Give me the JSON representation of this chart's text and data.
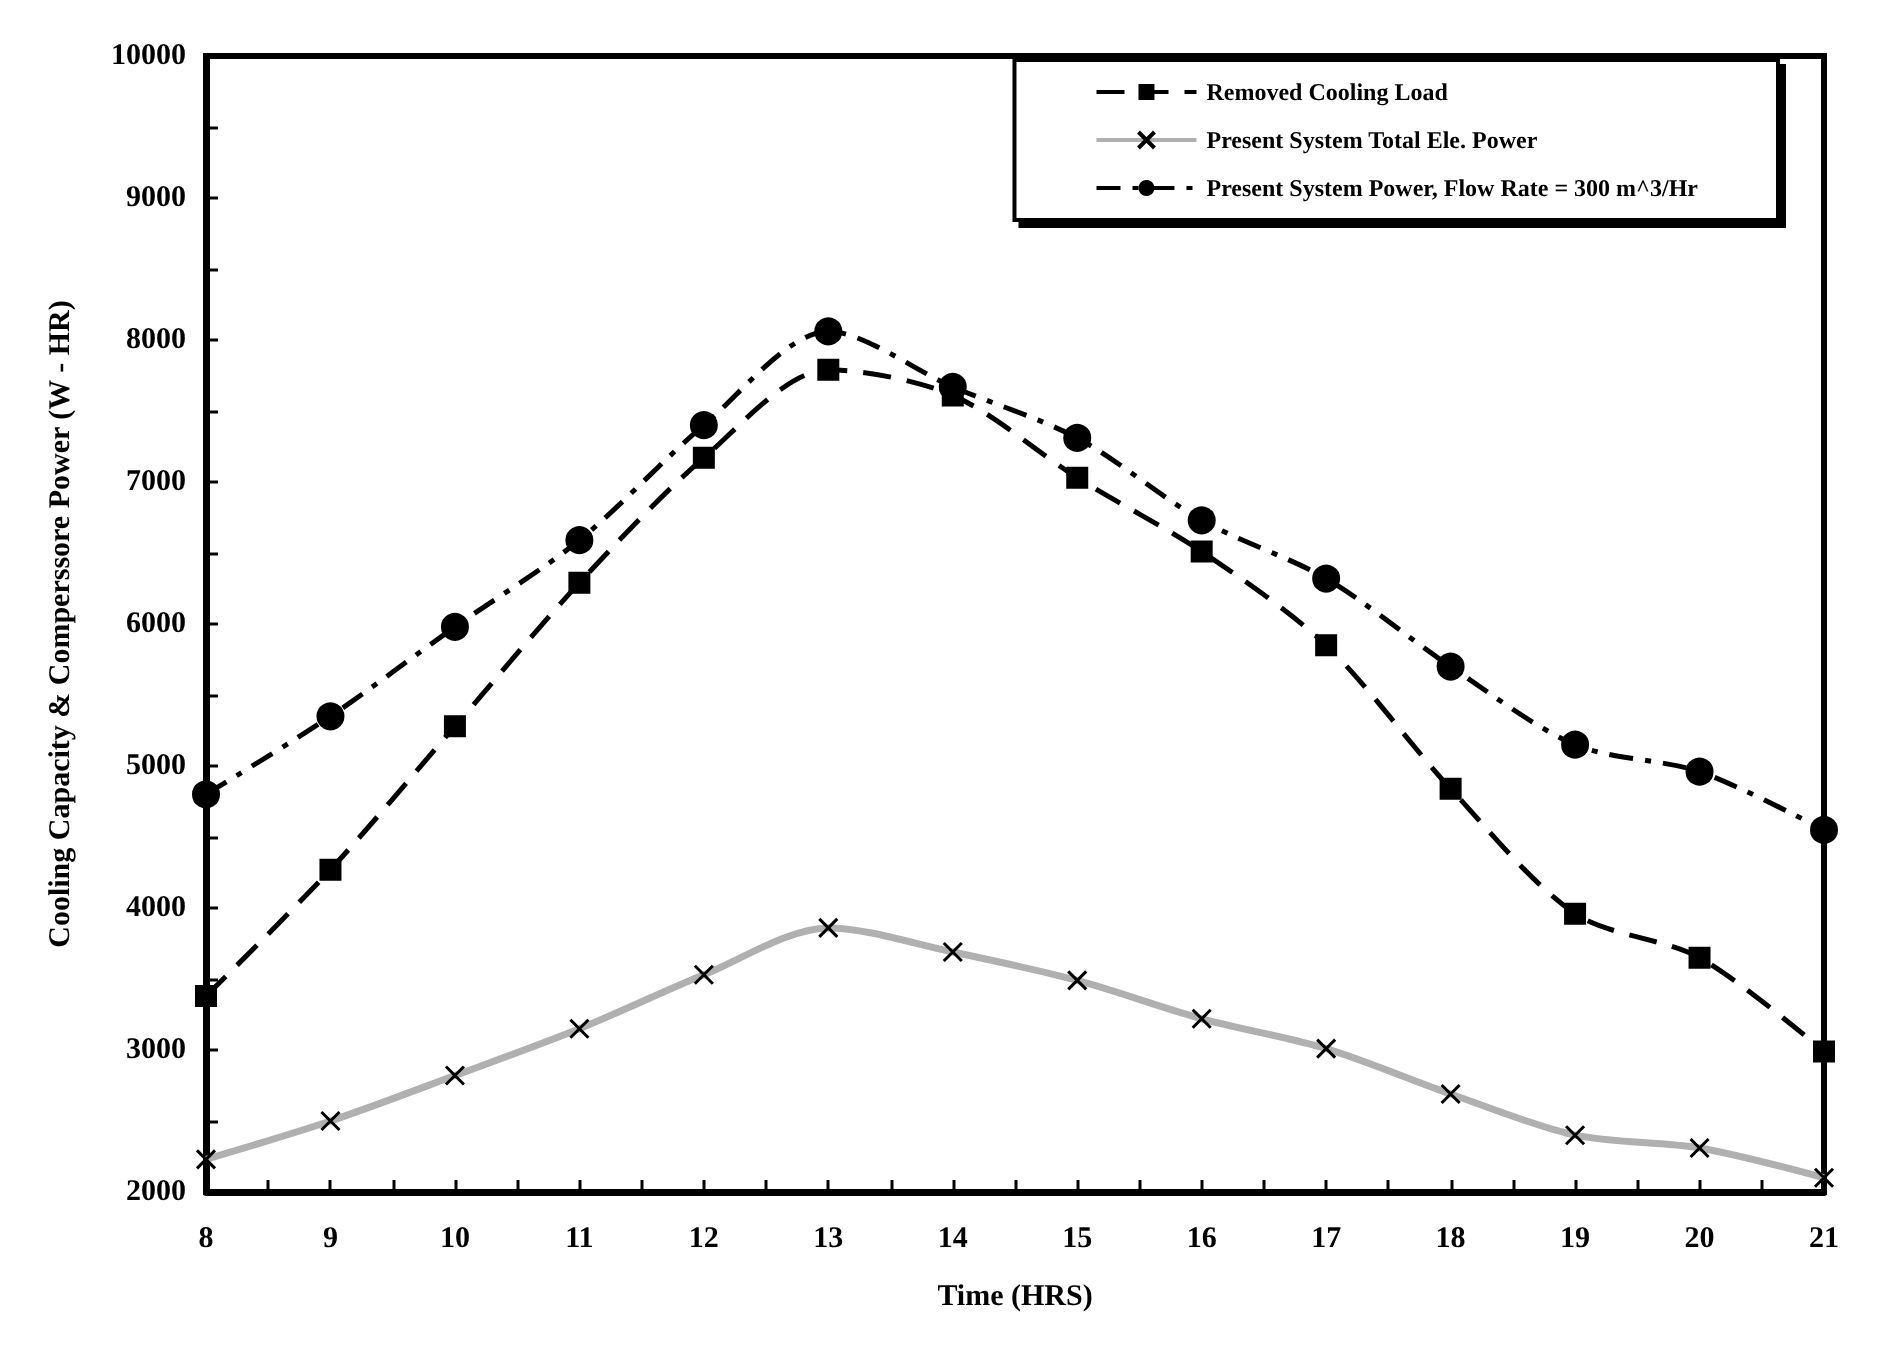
{
  "chart_data": {
    "type": "line",
    "xlabel": "Time (HRS)",
    "ylabel": "Cooling Capacity & Comperssore Power (W - HR)",
    "x": [
      8,
      9,
      10,
      11,
      12,
      13,
      14,
      15,
      16,
      17,
      18,
      19,
      20,
      21
    ],
    "series": [
      {
        "name": "Removed Cooling Load",
        "color": "#000000",
        "marker": "square",
        "line_style": "dashed",
        "values": [
          3380,
          4270,
          5280,
          6290,
          7170,
          7790,
          7610,
          7030,
          6510,
          5850,
          4840,
          3960,
          3650,
          2990
        ]
      },
      {
        "name": "Present System Total Ele. Power",
        "color": "#b0b0b0",
        "marker": "cross",
        "line_style": "solid",
        "values": [
          2230,
          2500,
          2820,
          3150,
          3530,
          3860,
          3690,
          3490,
          3220,
          3010,
          2690,
          2400,
          2310,
          2100
        ]
      },
      {
        "name": "Present System Power, Flow Rate = 300 m^3/Hr",
        "color": "#000000",
        "marker": "circle",
        "line_style": "dotted",
        "values": [
          4800,
          5350,
          5980,
          6590,
          7400,
          8060,
          7670,
          7310,
          6730,
          6320,
          5700,
          5150,
          4960,
          4550
        ]
      }
    ],
    "xlim": [
      8,
      21
    ],
    "xticks": [
      8,
      {
        "value": 8.5,
        "label": null
      },
      9,
      {
        "value": 9.5,
        "label": null
      },
      10,
      {
        "value": 10.5,
        "label": null
      },
      11,
      {
        "value": 11.5,
        "label": null
      },
      12,
      {
        "value": 12.5,
        "label": null
      },
      13,
      {
        "value": 13.5,
        "label": null
      },
      14,
      {
        "value": 14.5,
        "label": null
      },
      15,
      {
        "value": 15.5,
        "label": null
      },
      16,
      {
        "value": 16.5,
        "label": null
      },
      17,
      {
        "value": 17.5,
        "label": null
      },
      18,
      {
        "value": 18.5,
        "label": null
      },
      19,
      {
        "value": 19.5,
        "label": null
      },
      20,
      {
        "value": 20.5,
        "label": null
      },
      21
    ],
    "ylim": [
      2000,
      10000
    ],
    "yticks": [
      2000,
      {
        "value": 2500,
        "label": null
      },
      3000,
      {
        "value": 3500,
        "label": null
      },
      4000,
      {
        "value": 4500,
        "label": null
      },
      5000,
      {
        "value": 5500,
        "label": null
      },
      6000,
      {
        "value": 6500,
        "label": null
      },
      7000,
      {
        "value": 7500,
        "label": null
      },
      8000,
      {
        "value": 8500,
        "label": null
      },
      9000,
      {
        "value": 9500,
        "label": null
      },
      10000
    ],
    "grid": false,
    "legend": "top right"
  }
}
